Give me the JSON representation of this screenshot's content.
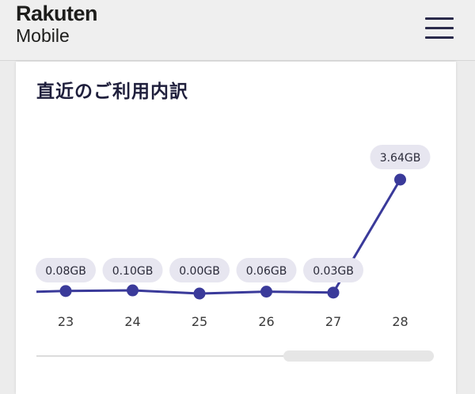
{
  "header": {
    "logo_top": "Rakuten",
    "logo_bottom": "Mobile",
    "menu_icon": "hamburger-menu-icon"
  },
  "card": {
    "title": "直近のご利用内訳"
  },
  "colors": {
    "line": "#3a3a9a",
    "label_bg": "#e7e6f0",
    "scroll_thumb": "#e6e6e6",
    "scroll_track": "#dcdcdc"
  },
  "chart_data": {
    "type": "line",
    "categories": [
      "23",
      "24",
      "25",
      "26",
      "27",
      "28"
    ],
    "values": [
      0.08,
      0.1,
      0.0,
      0.06,
      0.03,
      3.64
    ],
    "value_labels": [
      "0.08GB",
      "0.10GB",
      "0.00GB",
      "0.06GB",
      "0.03GB",
      "3.64GB"
    ],
    "unit": "GB",
    "title": "直近のご利用内訳",
    "xlabel": "",
    "ylabel": "",
    "grid": false,
    "legend": "none"
  }
}
